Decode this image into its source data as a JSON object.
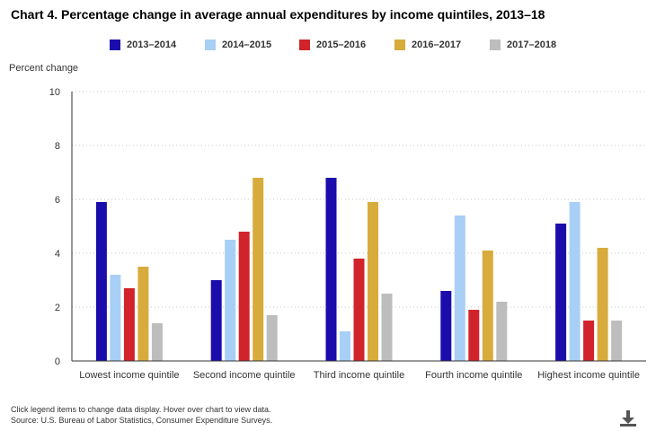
{
  "chart_data": {
    "type": "bar",
    "title": "Chart 4. Percentage change in average annual expenditures by income quintiles, 2013–18",
    "ylabel": "Percent change",
    "xlabel": "",
    "ylim": [
      0,
      10
    ],
    "yticks": [
      "0",
      "2",
      "4",
      "6",
      "8",
      "10"
    ],
    "grid": true,
    "legend_position": "top-center",
    "categories": [
      "Lowest income quintile",
      "Second income quintile",
      "Third income quintile",
      "Fourth income quintile",
      "Highest income quintile"
    ],
    "series": [
      {
        "name": "2013–2014",
        "color": "#1a0dab",
        "values": [
          5.9,
          3.0,
          6.8,
          2.6,
          5.1
        ]
      },
      {
        "name": "2014–2015",
        "color": "#a8cff5",
        "values": [
          3.2,
          4.5,
          1.1,
          5.4,
          5.9
        ]
      },
      {
        "name": "2015–2016",
        "color": "#d1232b",
        "values": [
          2.7,
          4.8,
          3.8,
          1.9,
          1.5
        ]
      },
      {
        "name": "2016–2017",
        "color": "#d8ac3c",
        "values": [
          3.5,
          6.8,
          5.9,
          4.1,
          4.2
        ]
      },
      {
        "name": "2017–2018",
        "color": "#bdbdbd",
        "values": [
          1.4,
          1.7,
          2.5,
          2.2,
          1.5
        ]
      }
    ]
  },
  "footer": {
    "instructions": "Click legend items to change data display. Hover over chart to view data.",
    "source": "Source: U.S. Bureau of Labor Statistics, Consumer Expenditure Surveys."
  },
  "download_icon": "download-icon"
}
